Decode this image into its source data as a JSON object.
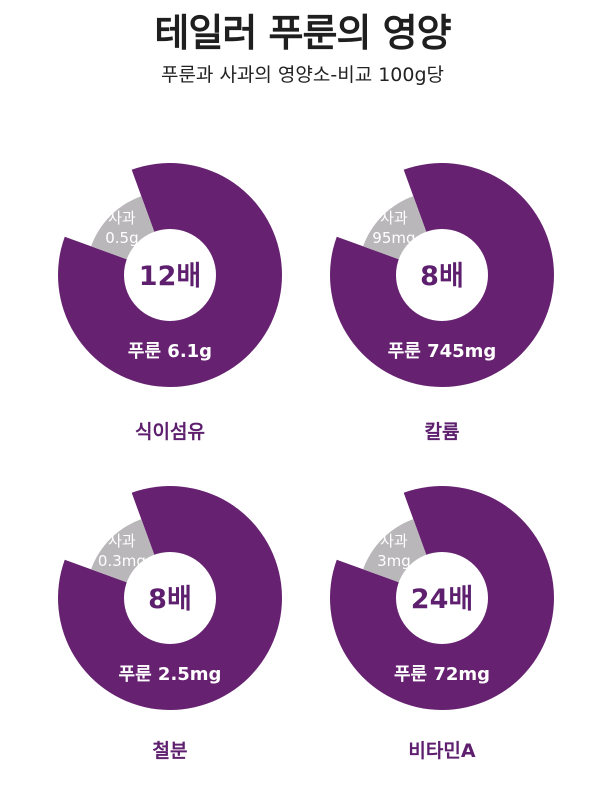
{
  "title": "테일러 푸룬의 영양",
  "subtitle": "푸룬과 사과의 영양소-비교 100g당",
  "colors": {
    "prune": "#662270",
    "apple": "#b9b7b9",
    "ratio_text": "#5d1f6e"
  },
  "chart_data": [
    {
      "type": "pie",
      "label": "식이섬유",
      "ratio": "12배",
      "slices": [
        {
          "name": "사과",
          "value_text": "0.5g",
          "value": 0.5
        },
        {
          "name": "푸룬",
          "value_text": "6.1g",
          "value": 6.1
        }
      ]
    },
    {
      "type": "pie",
      "label": "칼륨",
      "ratio": "8배",
      "slices": [
        {
          "name": "사과",
          "value_text": "95mg",
          "value": 95
        },
        {
          "name": "푸룬",
          "value_text": "745mg",
          "value": 745
        }
      ]
    },
    {
      "type": "pie",
      "label": "철분",
      "ratio": "8배",
      "slices": [
        {
          "name": "사과",
          "value_text": "0.3mg",
          "value": 0.3
        },
        {
          "name": "푸룬",
          "value_text": "2.5mg",
          "value": 2.5
        }
      ]
    },
    {
      "type": "pie",
      "label": "비타민A",
      "ratio": "24배",
      "slices": [
        {
          "name": "사과",
          "value_text": "3mg",
          "value": 3
        },
        {
          "name": "푸룬",
          "value_text": "72mg",
          "value": 72
        }
      ]
    }
  ]
}
